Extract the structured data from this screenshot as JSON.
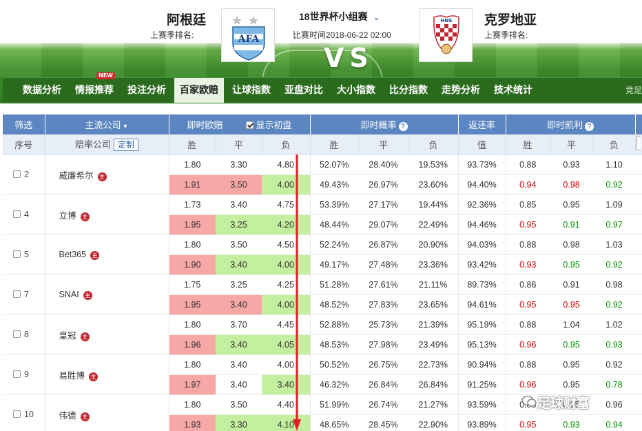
{
  "header": {
    "home_team": "阿根廷",
    "away_team": "克罗地亚",
    "home_rank_label": "上赛季排名:",
    "away_rank_label": "上赛季排名:",
    "competition": "18世界杯小组赛",
    "match_time": "比赛时间2018-06-22 02:00",
    "vs_text": "VS",
    "home_crest_text": "AFA",
    "away_crest_text": "HNS"
  },
  "nav": {
    "items": [
      {
        "label": "数据分析"
      },
      {
        "label": "情报推荐",
        "badge": "NEW"
      },
      {
        "label": "投注分析"
      },
      {
        "label": "百家欧赔",
        "active": true
      },
      {
        "label": "让球指数"
      },
      {
        "label": "亚盘对比"
      },
      {
        "label": "大小指数"
      },
      {
        "label": "比分指数"
      },
      {
        "label": "走势分析"
      },
      {
        "label": "技术统计"
      }
    ],
    "more": "竞足"
  },
  "table": {
    "head1": {
      "filter": "筛选",
      "main_company": "主流公司",
      "live_odds": "即时欧赔",
      "show_initial": "显示初盘",
      "live_prob": "即时概率",
      "return_rate": "返还率",
      "live_kelly": "即时凯利"
    },
    "head2": {
      "index": "序号",
      "company": "赔率公司",
      "custom": "定制",
      "win": "胜",
      "draw": "平",
      "loss": "负",
      "value": "值"
    },
    "rows": [
      {
        "idx": "2",
        "company": "威廉希尔",
        "odds1": [
          "1.80",
          "3.30",
          "4.80"
        ],
        "prob1": [
          "52.07%",
          "28.40%",
          "19.53%"
        ],
        "ret1": "93.73%",
        "kelly1": [
          "0.88",
          "0.93",
          "1.10"
        ],
        "odds2": [
          "1.91",
          "3.50",
          "4.00"
        ],
        "prob2": [
          "49.43%",
          "26.97%",
          "23.60%"
        ],
        "ret2": "94.40%",
        "kelly2": [
          "0.94",
          "0.98",
          "0.92"
        ]
      },
      {
        "idx": "4",
        "company": "立博",
        "odds1": [
          "1.73",
          "3.40",
          "4.75"
        ],
        "prob1": [
          "53.39%",
          "27.17%",
          "19.44%"
        ],
        "ret1": "92.36%",
        "kelly1": [
          "0.85",
          "0.95",
          "1.09"
        ],
        "odds2": [
          "1.95",
          "3.25",
          "4.20"
        ],
        "prob2": [
          "48.44%",
          "29.07%",
          "22.49%"
        ],
        "ret2": "94.46%",
        "kelly2": [
          "0.95",
          "0.91",
          "0.97"
        ]
      },
      {
        "idx": "5",
        "company": "Bet365",
        "odds1": [
          "1.80",
          "3.50",
          "4.50"
        ],
        "prob1": [
          "52.24%",
          "26.87%",
          "20.90%"
        ],
        "ret1": "94.03%",
        "kelly1": [
          "0.88",
          "0.98",
          "1.03"
        ],
        "odds2": [
          "1.90",
          "3.40",
          "4.00"
        ],
        "prob2": [
          "49.17%",
          "27.48%",
          "23.36%"
        ],
        "ret2": "93.42%",
        "kelly2": [
          "0.93",
          "0.95",
          "0.92"
        ]
      },
      {
        "idx": "7",
        "company": "SNAI",
        "odds1": [
          "1.75",
          "3.25",
          "4.25"
        ],
        "prob1": [
          "51.28%",
          "27.61%",
          "21.11%"
        ],
        "ret1": "89.73%",
        "kelly1": [
          "0.86",
          "0.91",
          "0.98"
        ],
        "odds2": [
          "1.95",
          "3.40",
          "4.00"
        ],
        "prob2": [
          "48.52%",
          "27.83%",
          "23.65%"
        ],
        "ret2": "94.61%",
        "kelly2": [
          "0.95",
          "0.95",
          "0.92"
        ]
      },
      {
        "idx": "8",
        "company": "皇冠",
        "odds1": [
          "1.80",
          "3.70",
          "4.45"
        ],
        "prob1": [
          "52.88%",
          "25.73%",
          "21.39%"
        ],
        "ret1": "95.19%",
        "kelly1": [
          "0.88",
          "1.04",
          "1.02"
        ],
        "odds2": [
          "1.96",
          "3.40",
          "4.05"
        ],
        "prob2": [
          "48.53%",
          "27.98%",
          "23.49%"
        ],
        "ret2": "95.13%",
        "kelly2": [
          "0.96",
          "0.95",
          "0.93"
        ]
      },
      {
        "idx": "9",
        "company": "易胜博",
        "odds1": [
          "1.80",
          "3.40",
          "4.00"
        ],
        "prob1": [
          "50.52%",
          "26.75%",
          "22.73%"
        ],
        "ret1": "90.94%",
        "kelly1": [
          "0.88",
          "0.95",
          "0.92"
        ],
        "odds2": [
          "1.97",
          "3.40",
          "3.40"
        ],
        "prob2": [
          "46.32%",
          "26.84%",
          "26.84%"
        ],
        "ret2": "91.25%",
        "kelly2": [
          "0.96",
          "0.95",
          "0.78"
        ]
      },
      {
        "idx": "10",
        "company": "伟德",
        "odds1": [
          "1.80",
          "3.50",
          "4.40"
        ],
        "prob1": [
          "51.99%",
          "26.74%",
          "21.27%"
        ],
        "ret1": "93.59%",
        "kelly1": [
          "0.88",
          "0.95",
          "0.96"
        ],
        "odds2": [
          "1.93",
          "3.30",
          "4.10"
        ],
        "prob2": [
          "48.65%",
          "28.45%",
          "22.90%"
        ],
        "ret2": "93.89%",
        "kelly2": [
          "0.95",
          "0.93",
          "0.94"
        ]
      }
    ],
    "zhu_label": "主"
  },
  "watermark": "足球财富",
  "colors": {
    "odds_up": "#f7a8a6",
    "odds_down": "#c3ef9f",
    "header_blue": "#5c86c1",
    "nav_green": "#2b6b1e",
    "kelly_red": "#d60000",
    "kelly_green": "#009a00"
  }
}
